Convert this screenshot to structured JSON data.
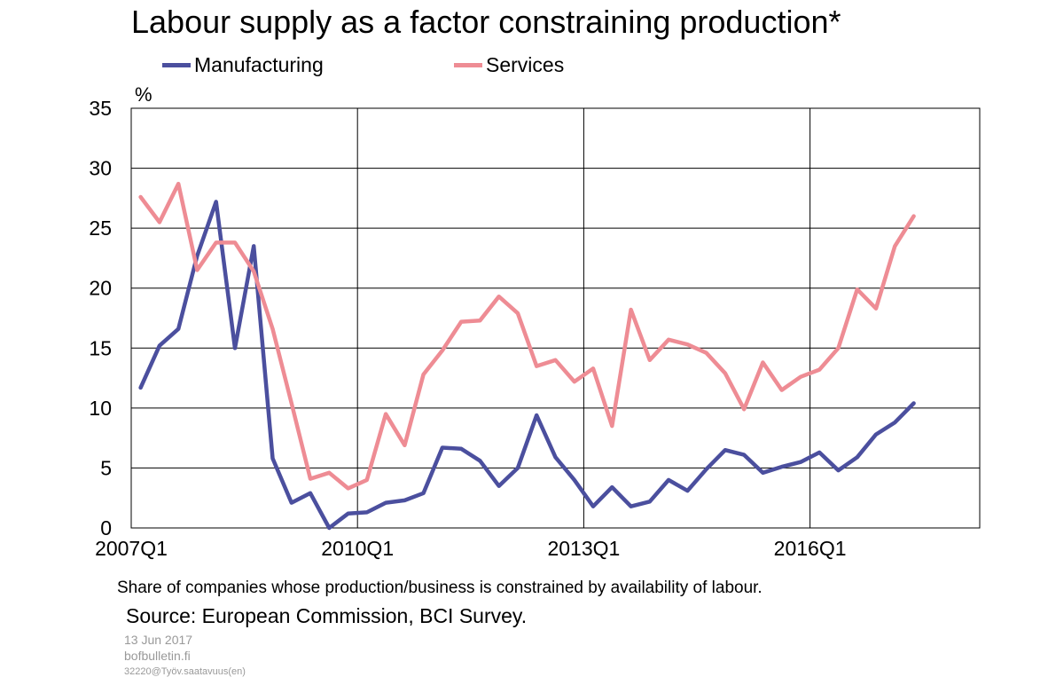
{
  "chart_data": {
    "type": "line",
    "title": "Labour supply as a factor constraining production*",
    "ylabel": "%",
    "xlabel": "",
    "ylim": [
      0,
      35
    ],
    "yticks": [
      "0",
      "5",
      "10",
      "15",
      "20",
      "25",
      "30",
      "35"
    ],
    "xtick_labels": [
      "2007Q1",
      "2010Q1",
      "2013Q1",
      "2016Q1"
    ],
    "x": [
      "2007Q1",
      "2007Q2",
      "2007Q3",
      "2007Q4",
      "2008Q1",
      "2008Q2",
      "2008Q3",
      "2008Q4",
      "2009Q1",
      "2009Q2",
      "2009Q3",
      "2009Q4",
      "2010Q1",
      "2010Q2",
      "2010Q3",
      "2010Q4",
      "2011Q1",
      "2011Q2",
      "2011Q3",
      "2011Q4",
      "2012Q1",
      "2012Q2",
      "2012Q3",
      "2012Q4",
      "2013Q1",
      "2013Q2",
      "2013Q3",
      "2013Q4",
      "2014Q1",
      "2014Q2",
      "2014Q3",
      "2014Q4",
      "2015Q1",
      "2015Q2",
      "2015Q3",
      "2015Q4",
      "2016Q1",
      "2016Q2",
      "2016Q3",
      "2016Q4",
      "2017Q1",
      "2017Q2"
    ],
    "grid": true,
    "legend_position": "top",
    "series": [
      {
        "name": "Manufacturing",
        "color": "#4b4f9e",
        "values": [
          11.7,
          15.2,
          16.6,
          22.7,
          27.2,
          15.0,
          23.5,
          5.8,
          2.1,
          2.9,
          0.0,
          1.2,
          1.3,
          2.1,
          2.3,
          2.9,
          6.7,
          6.6,
          5.6,
          3.5,
          5.0,
          9.4,
          5.9,
          4.0,
          1.8,
          3.4,
          1.8,
          2.2,
          4.0,
          3.1,
          4.9,
          6.5,
          6.1,
          4.6,
          5.1,
          5.5,
          6.3,
          4.8,
          5.9,
          7.8,
          8.8,
          10.4
        ]
      },
      {
        "name": "Services",
        "color": "#ee8c94",
        "values": [
          27.6,
          25.5,
          28.7,
          21.5,
          23.8,
          23.8,
          21.4,
          16.6,
          10.4,
          4.1,
          4.6,
          3.3,
          4.0,
          9.5,
          6.9,
          12.8,
          14.8,
          17.2,
          17.3,
          19.3,
          17.9,
          13.5,
          14.0,
          12.2,
          13.3,
          8.5,
          18.2,
          14.0,
          15.7,
          15.3,
          14.6,
          12.9,
          9.9,
          13.8,
          11.5,
          12.6,
          13.2,
          15.0,
          19.9,
          18.3,
          23.5,
          26.0
        ]
      }
    ]
  },
  "footer": {
    "note": "Share of companies whose production/business is constrained by availability of labour.",
    "source": "Source: European Commission, BCI Survey.",
    "date": "13 Jun 2017",
    "site": "bofbulletin.fi",
    "code": "32220@Työv.saatavuus(en)"
  }
}
